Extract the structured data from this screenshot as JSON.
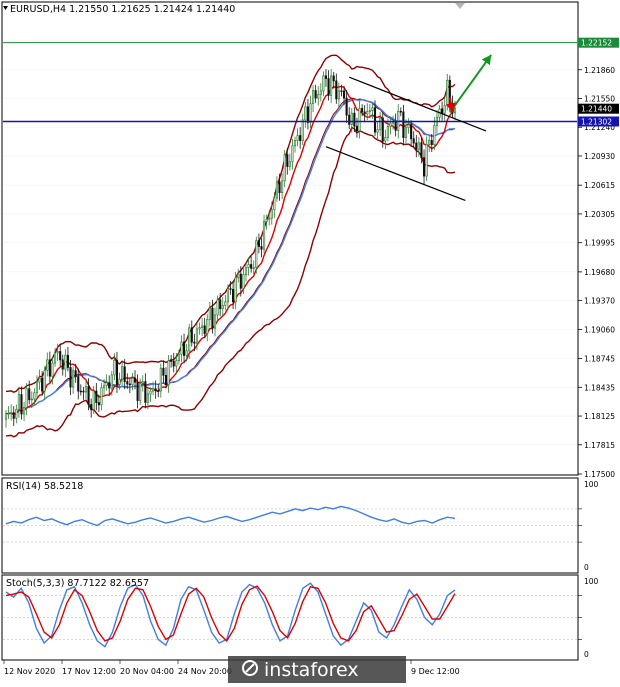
{
  "header": {
    "title": "EURUSD,H4  1.21550 1.21625 1.21424 1.21440"
  },
  "colors": {
    "bull": "#2e7d32",
    "bear": "#111111",
    "bollinger": "#8b0000",
    "ma_fast": "#e00000",
    "ma_slow": "#3f7ee8",
    "green_line": "#1b8a3a",
    "blue_line": "#1414b4",
    "badge_bid": "#000000",
    "badge_green": "#1b8a3a",
    "badge_blue": "#1414b4",
    "channel": "#000000",
    "arrow_green": "#14961e",
    "arrow_red": "#e00000",
    "rsi": "#3f7ee8",
    "stoch_main": "#3f7ee8",
    "stoch_signal": "#e00000",
    "grid": "#c8c8c8"
  },
  "chart_data": [
    {
      "type": "candlestick",
      "symbol": "EURUSD",
      "timeframe": "H4",
      "ylim": [
        1.175,
        1.2258
      ],
      "price_ticks": [
        "1.22170",
        "1.21860",
        "1.21550",
        "1.21240",
        "1.20930",
        "1.20615",
        "1.20305",
        "1.19995",
        "1.19680",
        "1.19370",
        "1.19060",
        "1.18745",
        "1.18435",
        "1.18125",
        "1.17815",
        "1.17500"
      ],
      "x_labels": [
        "12 Nov 2020",
        "17 Nov 12:00",
        "20 Nov 04:00",
        "24 Nov 20:00",
        "9 Dec 12:00"
      ],
      "anchors": [
        [
          0,
          1.181
        ],
        [
          10,
          1.1835
        ],
        [
          20,
          1.188
        ],
        [
          28,
          1.1845
        ],
        [
          34,
          1.1825
        ],
        [
          42,
          1.186
        ],
        [
          50,
          1.1845
        ],
        [
          56,
          1.1835
        ],
        [
          62,
          1.186
        ],
        [
          70,
          1.189
        ],
        [
          80,
          1.192
        ],
        [
          88,
          1.195
        ],
        [
          96,
          1.198
        ],
        [
          102,
          1.203
        ],
        [
          108,
          1.208
        ],
        [
          114,
          1.212
        ],
        [
          118,
          1.215
        ],
        [
          124,
          1.2175
        ],
        [
          130,
          1.216
        ],
        [
          134,
          1.2125
        ],
        [
          140,
          1.2145
        ],
        [
          146,
          1.2115
        ],
        [
          152,
          1.2135
        ],
        [
          158,
          1.211
        ],
        [
          162,
          1.2085
        ],
        [
          166,
          1.2125
        ],
        [
          171,
          1.216
        ],
        [
          174,
          1.2144
        ]
      ],
      "bands": {
        "period": 20,
        "ma_fast": 9,
        "ma_slow": 21
      },
      "horizontal_lines": [
        {
          "price": 1.22152,
          "label": "1.22152",
          "color": "green"
        },
        {
          "price": 1.21302,
          "label": "1.21302",
          "color": "blue"
        }
      ],
      "bid_label": "1.21440",
      "bid_price": 1.2144,
      "channel": {
        "upper": [
          [
            133,
            1.2178
          ],
          [
            186,
            1.212
          ]
        ],
        "lower": [
          [
            124,
            1.2103
          ],
          [
            178,
            1.2045
          ]
        ]
      },
      "arrows": [
        {
          "color": "green",
          "from": [
            172,
            1.214
          ],
          "to": [
            188,
            1.2202
          ]
        },
        {
          "color": "red",
          "from": [
            172,
            1.2156
          ],
          "to": [
            173,
            1.214
          ]
        }
      ]
    },
    {
      "type": "line",
      "name": "RSI(14)",
      "label": "RSI(14) 58.5218",
      "last": 58.5218,
      "ylim": [
        0,
        100
      ],
      "y_ticks": [
        "100",
        "0"
      ],
      "levels": [
        70,
        50,
        30
      ],
      "values": [
        52,
        55,
        53,
        57,
        60,
        56,
        58,
        54,
        51,
        55,
        57,
        53,
        50,
        56,
        58,
        55,
        52,
        54,
        57,
        59,
        56,
        53,
        55,
        58,
        60,
        57,
        54,
        56,
        59,
        61,
        58,
        55,
        57,
        60,
        63,
        66,
        64,
        67,
        70,
        68,
        71,
        69,
        72,
        70,
        73,
        71,
        68,
        64,
        60,
        57,
        55,
        58,
        54,
        52,
        55,
        56,
        53,
        57,
        60,
        58.5
      ]
    },
    {
      "type": "line",
      "name": "Stoch(5,3,3)",
      "label": "Stoch(5,3,3) 87.7122 82.6557",
      "main_last": 87.7122,
      "signal_last": 82.6557,
      "ylim": [
        0,
        100
      ],
      "y_ticks": [
        "100",
        "0"
      ],
      "levels": [
        80,
        50,
        20
      ],
      "main": [
        85,
        78,
        90,
        70,
        35,
        15,
        25,
        60,
        88,
        92,
        70,
        40,
        18,
        10,
        30,
        65,
        90,
        95,
        80,
        45,
        20,
        12,
        35,
        75,
        92,
        88,
        60,
        30,
        15,
        20,
        55,
        85,
        95,
        90,
        70,
        40,
        18,
        25,
        60,
        90,
        97,
        85,
        55,
        25,
        12,
        20,
        45,
        70,
        60,
        30,
        22,
        40,
        65,
        88,
        75,
        50,
        40,
        55,
        80,
        87.7
      ],
      "signal": [
        80,
        82,
        85,
        78,
        55,
        30,
        22,
        40,
        70,
        88,
        80,
        58,
        32,
        18,
        22,
        45,
        75,
        90,
        88,
        65,
        38,
        20,
        26,
        55,
        82,
        90,
        78,
        50,
        28,
        18,
        35,
        68,
        88,
        93,
        80,
        58,
        32,
        22,
        42,
        72,
        92,
        90,
        70,
        42,
        22,
        18,
        32,
        58,
        66,
        48,
        30,
        32,
        52,
        75,
        82,
        65,
        48,
        48,
        65,
        82.7
      ]
    }
  ],
  "watermark": "instaforex"
}
